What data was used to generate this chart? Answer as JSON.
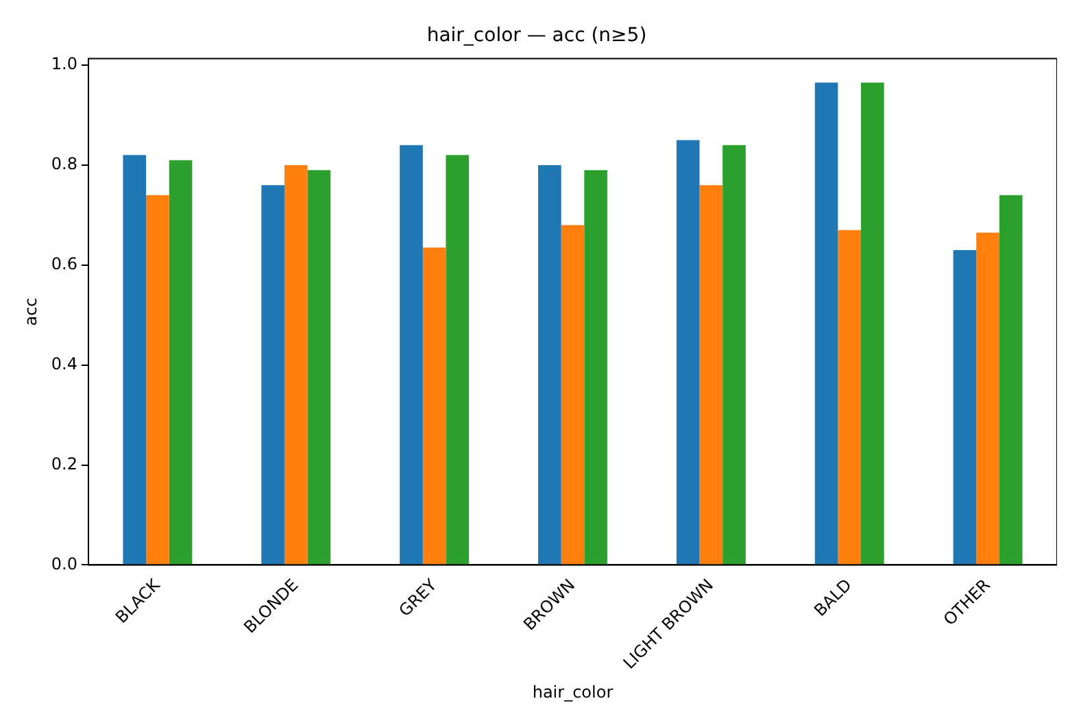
{
  "chart_data": {
    "type": "bar",
    "title": "hair_color — acc (n≥5)",
    "xlabel": "hair_color",
    "ylabel": "acc",
    "categories": [
      "BLACK",
      "BLONDE",
      "GREY",
      "BROWN",
      "LIGHT BROWN",
      "BALD",
      "OTHER"
    ],
    "series": [
      {
        "color": "#1f77b4",
        "values": [
          0.82,
          0.76,
          0.84,
          0.8,
          0.85,
          0.965,
          0.63
        ]
      },
      {
        "color": "#ff7f0e",
        "values": [
          0.74,
          0.8,
          0.635,
          0.68,
          0.76,
          0.67,
          0.665
        ]
      },
      {
        "color": "#2ca02c",
        "values": [
          0.81,
          0.79,
          0.82,
          0.79,
          0.84,
          0.965,
          0.74
        ]
      }
    ],
    "ylim": [
      0,
      1.013
    ],
    "yticks": [
      {
        "value": 0,
        "label": "0.0"
      },
      {
        "value": 0.2,
        "label": "0.2"
      },
      {
        "value": 0.4,
        "label": "0.4"
      },
      {
        "value": 0.6,
        "label": "0.6"
      },
      {
        "value": 0.8,
        "label": "0.8"
      },
      {
        "value": 1,
        "label": "1.0"
      }
    ],
    "grid": false,
    "legend": false
  }
}
